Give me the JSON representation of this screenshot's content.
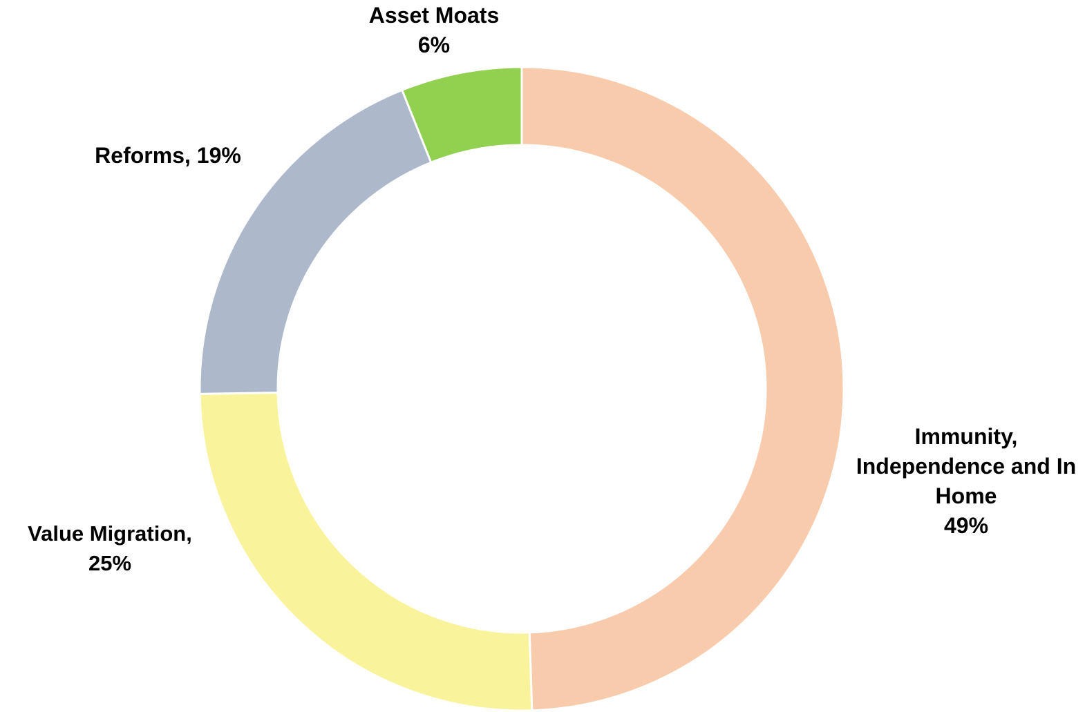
{
  "chart_data": {
    "type": "donut",
    "categories": [
      "Immunity, Independence and In Home",
      "Value Migration,",
      "Reforms,",
      "Asset Moats"
    ],
    "values": [
      49,
      25,
      19,
      6
    ],
    "value_labels": [
      "49%",
      "25%",
      "19%",
      "6%"
    ],
    "colors": [
      "#f8cbad",
      "#f9f49b",
      "#adb9ca",
      "#92d050"
    ]
  }
}
